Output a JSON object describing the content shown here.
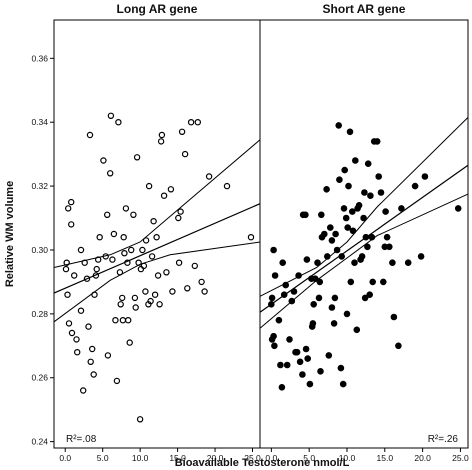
{
  "chart_data": {
    "type": "scatter",
    "xlabel": "Bioavailable Testosterone nmol/L",
    "ylabel": "Relative WM volume",
    "xlim": [
      -1.5,
      26
    ],
    "ylim": [
      0.238,
      0.372
    ],
    "xticks": [
      "0.0",
      "5.0",
      "10.0",
      "15.0",
      "20.0",
      "25.0"
    ],
    "yticks": [
      "0.24",
      "0.26",
      "0.28",
      "0.30",
      "0.32",
      "0.34",
      "0.36"
    ],
    "grid": false,
    "panels": [
      {
        "title": "Long AR gene",
        "annotation": "R²=.08",
        "marker": "open-circle",
        "points": [
          [
            0.1,
            0.294
          ],
          [
            0.2,
            0.296
          ],
          [
            0.3,
            0.286
          ],
          [
            0.4,
            0.313
          ],
          [
            0.8,
            0.315
          ],
          [
            0.8,
            0.308
          ],
          [
            0.5,
            0.277
          ],
          [
            0.9,
            0.274
          ],
          [
            1.2,
            0.292
          ],
          [
            1.5,
            0.272
          ],
          [
            1.6,
            0.268
          ],
          [
            2.1,
            0.3
          ],
          [
            2.1,
            0.281
          ],
          [
            2.4,
            0.256
          ],
          [
            2.6,
            0.296
          ],
          [
            2.9,
            0.291
          ],
          [
            3.1,
            0.276
          ],
          [
            3.3,
            0.336
          ],
          [
            3.4,
            0.265
          ],
          [
            3.6,
            0.269
          ],
          [
            3.8,
            0.261
          ],
          [
            3.9,
            0.286
          ],
          [
            4.1,
            0.292
          ],
          [
            4.2,
            0.294
          ],
          [
            4.4,
            0.297
          ],
          [
            4.6,
            0.304
          ],
          [
            5.1,
            0.328
          ],
          [
            5.4,
            0.298
          ],
          [
            5.6,
            0.311
          ],
          [
            5.7,
            0.267
          ],
          [
            6.0,
            0.324
          ],
          [
            6.1,
            0.342
          ],
          [
            6.3,
            0.297
          ],
          [
            6.5,
            0.305
          ],
          [
            6.7,
            0.278
          ],
          [
            6.9,
            0.259
          ],
          [
            7.1,
            0.34
          ],
          [
            7.3,
            0.293
          ],
          [
            7.4,
            0.283
          ],
          [
            7.6,
            0.285
          ],
          [
            7.7,
            0.278
          ],
          [
            7.8,
            0.304
          ],
          [
            7.9,
            0.299
          ],
          [
            8.1,
            0.313
          ],
          [
            8.3,
            0.296
          ],
          [
            8.4,
            0.278
          ],
          [
            8.6,
            0.271
          ],
          [
            8.8,
            0.3
          ],
          [
            9.1,
            0.311
          ],
          [
            9.3,
            0.285
          ],
          [
            9.4,
            0.282
          ],
          [
            9.6,
            0.329
          ],
          [
            9.8,
            0.296
          ],
          [
            10.0,
            0.247
          ],
          [
            10.1,
            0.294
          ],
          [
            10.3,
            0.3
          ],
          [
            10.5,
            0.295
          ],
          [
            10.7,
            0.287
          ],
          [
            10.8,
            0.303
          ],
          [
            11.1,
            0.283
          ],
          [
            11.2,
            0.32
          ],
          [
            11.4,
            0.284
          ],
          [
            11.6,
            0.298
          ],
          [
            11.8,
            0.309
          ],
          [
            12.0,
            0.286
          ],
          [
            12.2,
            0.304
          ],
          [
            12.4,
            0.292
          ],
          [
            12.6,
            0.283
          ],
          [
            12.8,
            0.334
          ],
          [
            12.9,
            0.336
          ],
          [
            13.2,
            0.317
          ],
          [
            13.5,
            0.293
          ],
          [
            14.1,
            0.319
          ],
          [
            14.3,
            0.287
          ],
          [
            15.1,
            0.31
          ],
          [
            15.2,
            0.296
          ],
          [
            15.4,
            0.312
          ],
          [
            15.6,
            0.337
          ],
          [
            16.0,
            0.33
          ],
          [
            16.3,
            0.288
          ],
          [
            16.8,
            0.34
          ],
          [
            17.3,
            0.295
          ],
          [
            17.7,
            0.34
          ],
          [
            18.2,
            0.29
          ],
          [
            18.6,
            0.287
          ],
          [
            19.2,
            0.323
          ],
          [
            21.6,
            0.32
          ],
          [
            24.8,
            0.304
          ]
        ],
        "fit": {
          "x": [
            -1.5,
            26
          ],
          "y": [
            0.2865,
            0.3145
          ]
        },
        "ci_lower": {
          "x": [
            -1.5,
            6,
            10,
            14,
            26
          ],
          "y": [
            0.2775,
            0.2905,
            0.2955,
            0.2985,
            0.3025
          ]
        },
        "ci_upper": {
          "x": [
            -1.5,
            6,
            10,
            14,
            26
          ],
          "y": [
            0.2945,
            0.2985,
            0.3025,
            0.3105,
            0.3345
          ]
        }
      },
      {
        "title": "Short AR gene",
        "annotation": "R²=.26",
        "marker": "filled-circle",
        "points": [
          [
            0.0,
            0.283
          ],
          [
            0.1,
            0.272
          ],
          [
            0.1,
            0.285
          ],
          [
            0.3,
            0.273
          ],
          [
            0.3,
            0.3
          ],
          [
            0.4,
            0.27
          ],
          [
            0.5,
            0.292
          ],
          [
            1.0,
            0.278
          ],
          [
            1.2,
            0.264
          ],
          [
            1.4,
            0.257
          ],
          [
            1.5,
            0.296
          ],
          [
            1.7,
            0.286
          ],
          [
            1.9,
            0.289
          ],
          [
            2.1,
            0.264
          ],
          [
            2.4,
            0.272
          ],
          [
            2.7,
            0.284
          ],
          [
            3.0,
            0.287
          ],
          [
            3.2,
            0.268
          ],
          [
            3.4,
            0.268
          ],
          [
            3.6,
            0.292
          ],
          [
            3.8,
            0.265
          ],
          [
            4.1,
            0.261
          ],
          [
            4.2,
            0.311
          ],
          [
            4.5,
            0.311
          ],
          [
            4.6,
            0.269
          ],
          [
            4.7,
            0.297
          ],
          [
            4.8,
            0.266
          ],
          [
            5.1,
            0.258
          ],
          [
            5.3,
            0.291
          ],
          [
            5.4,
            0.276
          ],
          [
            5.5,
            0.277
          ],
          [
            5.6,
            0.283
          ],
          [
            5.8,
            0.291
          ],
          [
            6.1,
            0.296
          ],
          [
            6.3,
            0.285
          ],
          [
            6.4,
            0.29
          ],
          [
            6.5,
            0.262
          ],
          [
            6.6,
            0.311
          ],
          [
            6.7,
            0.304
          ],
          [
            7.0,
            0.305
          ],
          [
            7.3,
            0.319
          ],
          [
            7.4,
            0.298
          ],
          [
            7.6,
            0.267
          ],
          [
            7.8,
            0.307
          ],
          [
            8.0,
            0.282
          ],
          [
            8.0,
            0.303
          ],
          [
            8.3,
            0.277
          ],
          [
            8.4,
            0.285
          ],
          [
            8.5,
            0.305
          ],
          [
            8.7,
            0.3
          ],
          [
            8.9,
            0.339
          ],
          [
            9.0,
            0.322
          ],
          [
            9.2,
            0.263
          ],
          [
            9.3,
            0.298
          ],
          [
            9.5,
            0.258
          ],
          [
            9.6,
            0.313
          ],
          [
            9.7,
            0.325
          ],
          [
            9.9,
            0.31
          ],
          [
            10.0,
            0.28
          ],
          [
            10.1,
            0.307
          ],
          [
            10.2,
            0.32
          ],
          [
            10.4,
            0.337
          ],
          [
            10.5,
            0.29
          ],
          [
            10.7,
            0.312
          ],
          [
            10.8,
            0.306
          ],
          [
            11.0,
            0.296
          ],
          [
            11.1,
            0.328
          ],
          [
            11.3,
            0.275
          ],
          [
            11.4,
            0.313
          ],
          [
            11.6,
            0.314
          ],
          [
            11.8,
            0.297
          ],
          [
            12.0,
            0.298
          ],
          [
            12.2,
            0.31
          ],
          [
            12.3,
            0.318
          ],
          [
            12.4,
            0.285
          ],
          [
            12.5,
            0.304
          ],
          [
            12.7,
            0.301
          ],
          [
            12.8,
            0.327
          ],
          [
            13.0,
            0.286
          ],
          [
            13.1,
            0.317
          ],
          [
            13.3,
            0.304
          ],
          [
            13.4,
            0.29
          ],
          [
            13.6,
            0.334
          ],
          [
            14.0,
            0.334
          ],
          [
            14.2,
            0.323
          ],
          [
            14.5,
            0.318
          ],
          [
            14.8,
            0.29
          ],
          [
            15.0,
            0.301
          ],
          [
            15.1,
            0.312
          ],
          [
            15.3,
            0.304
          ],
          [
            15.6,
            0.301
          ],
          [
            16.0,
            0.296
          ],
          [
            16.2,
            0.279
          ],
          [
            16.8,
            0.27
          ],
          [
            17.2,
            0.313
          ],
          [
            18.1,
            0.296
          ],
          [
            19.0,
            0.32
          ],
          [
            19.8,
            0.298
          ],
          [
            20.3,
            0.323
          ],
          [
            24.7,
            0.313
          ]
        ],
        "fit": {
          "x": [
            -1.5,
            26
          ],
          "y": [
            0.2805,
            0.3265
          ]
        },
        "ci_lower": {
          "x": [
            -1.5,
            6,
            10,
            14,
            26
          ],
          "y": [
            0.2755,
            0.2905,
            0.2975,
            0.3045,
            0.3175
          ]
        },
        "ci_upper": {
          "x": [
            -1.5,
            6,
            10,
            14,
            26
          ],
          "y": [
            0.2855,
            0.2945,
            0.3025,
            0.3135,
            0.3415
          ]
        }
      }
    ]
  }
}
